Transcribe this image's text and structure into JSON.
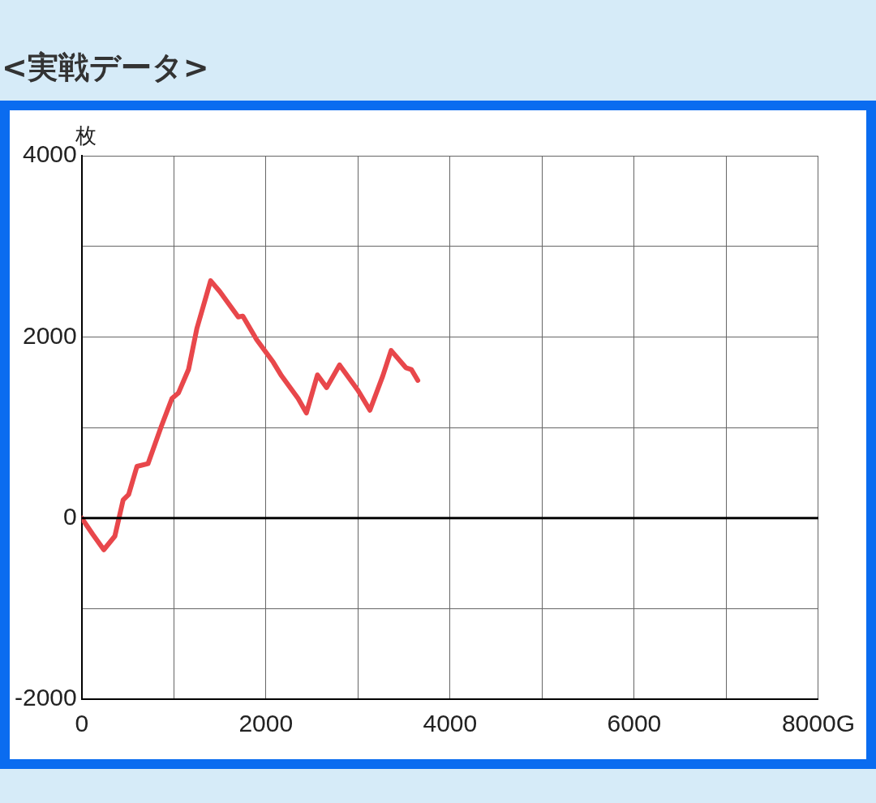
{
  "chart_data": {
    "type": "line",
    "title": "<実戦データ>",
    "ylabel": "枚",
    "x": [
      0,
      120,
      240,
      360,
      450,
      510,
      600,
      720,
      860,
      980,
      1050,
      1160,
      1250,
      1400,
      1500,
      1700,
      1750,
      1900,
      2080,
      2170,
      2350,
      2440,
      2560,
      2660,
      2800,
      3000,
      3130,
      3270,
      3360,
      3520,
      3580,
      3650
    ],
    "series": [
      {
        "color": "#e8474b",
        "values": [
          0,
          -180,
          -350,
          -200,
          200,
          260,
          570,
          600,
          1000,
          1320,
          1380,
          1640,
          2090,
          2620,
          2500,
          2220,
          2230,
          1970,
          1720,
          1570,
          1320,
          1160,
          1580,
          1440,
          1690,
          1410,
          1190,
          1570,
          1850,
          1660,
          1640,
          1520
        ]
      }
    ],
    "xlim": [
      0,
      8000
    ],
    "xticks": [
      0,
      {
        "value": 1000,
        "label": null
      },
      2000,
      {
        "value": 3000,
        "label": null
      },
      4000,
      {
        "value": 5000,
        "label": null
      },
      6000,
      {
        "value": 7000,
        "label": null
      },
      {
        "value": 8000,
        "label": "8000G"
      }
    ],
    "ylim": [
      -2000,
      4000
    ],
    "yticks": [
      -2000,
      {
        "value": -1000,
        "label": null
      },
      0,
      {
        "value": 1000,
        "label": null
      },
      2000,
      {
        "value": 3000,
        "label": null
      },
      4000
    ],
    "ref_lines": [
      {
        "axis": "y",
        "value": 0,
        "color": "#000000"
      }
    ],
    "grid": true,
    "legend": false,
    "marker": "none",
    "line_style": "solid"
  }
}
